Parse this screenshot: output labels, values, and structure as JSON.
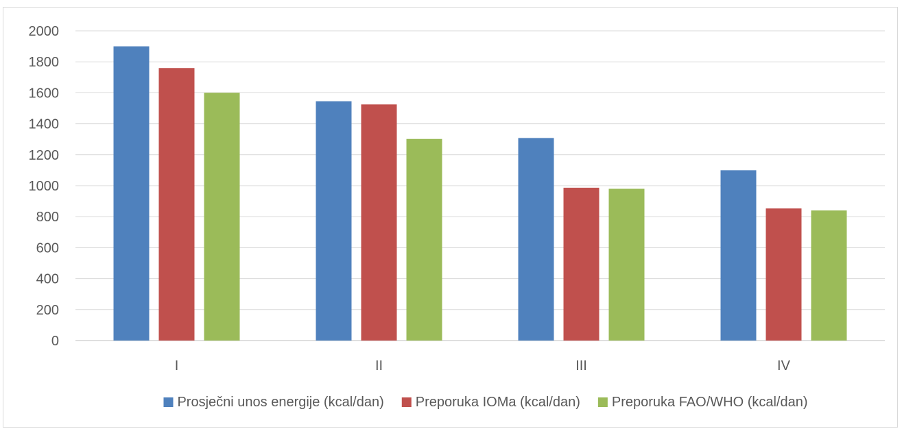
{
  "chart_data": {
    "type": "bar",
    "title": "",
    "xlabel": "",
    "ylabel": "",
    "categories": [
      "I",
      "II",
      "III",
      "IV"
    ],
    "series": [
      {
        "name": "Prosječni unos energije (kcal/dan)",
        "color": "#4f81bd",
        "values": [
          1900,
          1545,
          1308,
          1100
        ]
      },
      {
        "name": "Preporuka IOMa (kcal/dan)",
        "color": "#c0504d",
        "values": [
          1760,
          1525,
          987,
          853
        ]
      },
      {
        "name": "Preporuka FAO/WHO (kcal/dan)",
        "color": "#9bbb59",
        "values": [
          1600,
          1302,
          980,
          840
        ]
      }
    ],
    "ylim": [
      0,
      2000
    ],
    "yticks": [
      0,
      200,
      400,
      600,
      800,
      1000,
      1200,
      1400,
      1600,
      1800,
      2000
    ],
    "grid": true,
    "legend_position": "bottom",
    "gridline_color": "#d9d9d9",
    "axis_color": "#bfbfbf"
  }
}
